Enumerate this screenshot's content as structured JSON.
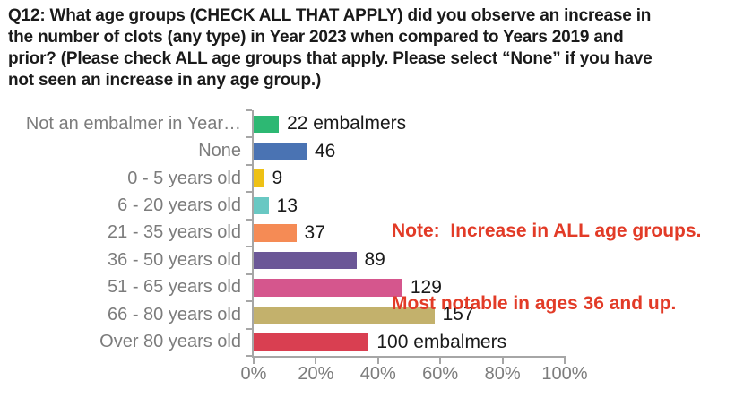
{
  "title": "Q12: What age groups (CHECK ALL THAT APPLY) did you observe an increase in\nthe number of clots (any type) in Year 2023 when compared to Years 2019 and\nprior? (Please check ALL age groups that apply. Please select “None” if you have\nnot seen an increase in any age group.)",
  "note": {
    "line1": "Note:  Increase in ALL age groups.",
    "line2": "Most notable in ages 36 and up.",
    "color": "#e23b27"
  },
  "chart_data": {
    "type": "bar",
    "orientation": "horizontal",
    "categories": [
      "Not an embalmer in Year…",
      "None",
      "0 - 5 years old",
      "6 - 20 years old",
      "21 - 35 years old",
      "36 - 50 years old",
      "51 - 65 years old",
      "66 - 80 years old",
      "Over 80 years old"
    ],
    "values": [
      22,
      46,
      9,
      13,
      37,
      89,
      129,
      157,
      100
    ],
    "value_labels": [
      "22 embalmers",
      "46",
      "9",
      "13",
      "37",
      "89",
      "129",
      "157",
      "100 embalmers"
    ],
    "percents_of_axis": [
      8.1,
      17.0,
      3.3,
      4.8,
      13.7,
      33.0,
      47.8,
      58.1,
      37.0
    ],
    "bar_colors": [
      "#2db873",
      "#4a73b3",
      "#eec115",
      "#69c8c3",
      "#f58b55",
      "#6b5797",
      "#d5568d",
      "#c3b16c",
      "#d93f51"
    ],
    "title": "",
    "xlabel": "",
    "ylabel": "",
    "x_axis": {
      "tick_labels": [
        "0%",
        "20%",
        "40%",
        "60%",
        "80%",
        "100%"
      ],
      "min": 0,
      "max": 100
    },
    "grid": false,
    "legend": false
  },
  "colors": {
    "category_label": "#7c7c7c",
    "tick_label": "#7c7c7c",
    "axis_line": "#a6a6a6",
    "value_label": "#1a1a1a",
    "title_text": "#1a1a1a",
    "background": "#ffffff"
  }
}
